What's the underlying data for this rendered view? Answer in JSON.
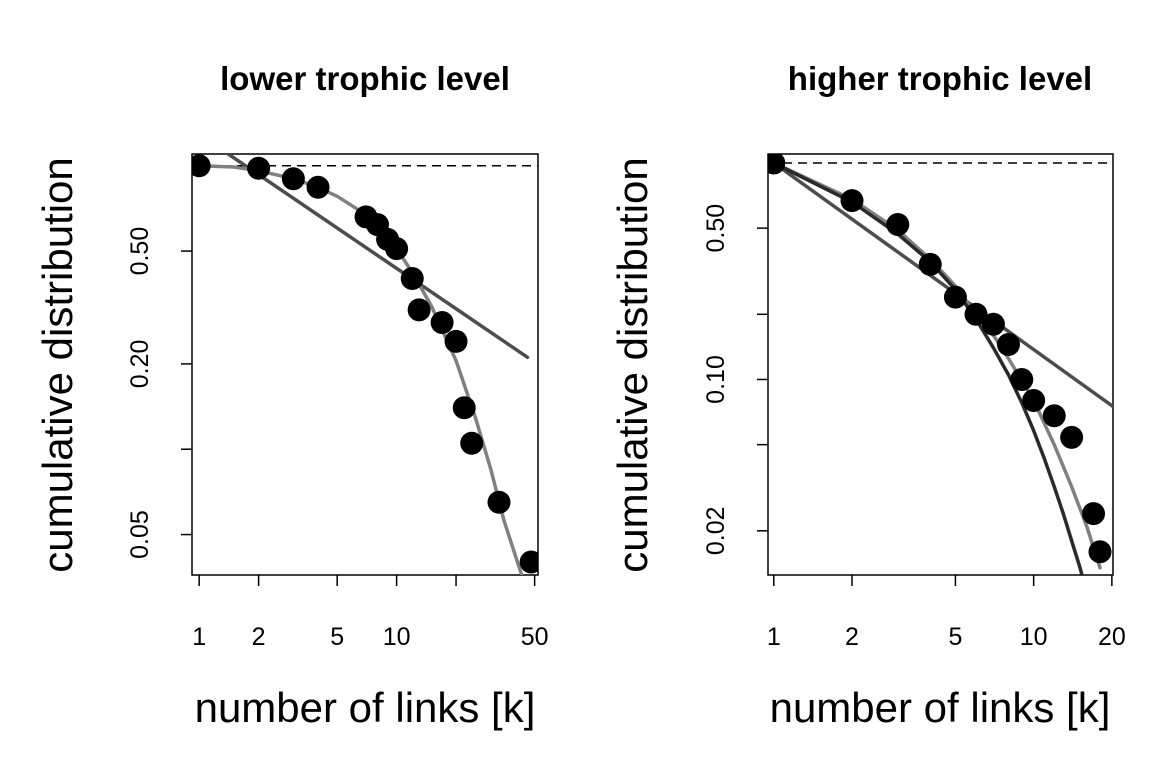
{
  "chart_data": [
    {
      "type": "scatter",
      "title": "lower trophic level",
      "xlabel": "number of links [k]",
      "ylabel": "cumulative distribution",
      "xscale": "log",
      "yscale": "log",
      "xlim": [
        0.92,
        52
      ],
      "ylim": [
        0.036,
        1.1
      ],
      "x_ticks": [
        1,
        2,
        5,
        10,
        20,
        50
      ],
      "x_tick_labels": [
        "1",
        "2",
        "5",
        "10",
        "",
        "50"
      ],
      "y_ticks": [
        0.05,
        0.1,
        0.2,
        0.5
      ],
      "y_tick_labels": [
        "0.05",
        "",
        "0.20",
        "0.50"
      ],
      "reference_line": {
        "y": 1.0,
        "style": "dashed"
      },
      "points": {
        "x": [
          1,
          2,
          3,
          4,
          7,
          8,
          9,
          10,
          12,
          13,
          17,
          20,
          22,
          24,
          33,
          48
        ],
        "y": [
          1.0,
          0.98,
          0.9,
          0.84,
          0.66,
          0.62,
          0.55,
          0.51,
          0.4,
          0.31,
          0.28,
          0.24,
          0.14,
          0.105,
          0.065,
          0.04
        ]
      },
      "fits": [
        {
          "style": "straight",
          "color": "#4d4d4d",
          "x": [
            1.3,
            46
          ],
          "y": [
            1.14,
            0.211
          ]
        },
        {
          "style": "curved",
          "color": "#808080",
          "x": [
            1,
            1.5,
            2,
            3,
            4,
            5,
            6,
            7,
            8,
            10,
            12,
            15,
            20,
            25,
            30,
            35,
            40,
            43
          ],
          "y": [
            1.0,
            0.99,
            0.96,
            0.9,
            0.84,
            0.78,
            0.72,
            0.67,
            0.61,
            0.51,
            0.42,
            0.32,
            0.205,
            0.13,
            0.085,
            0.056,
            0.042,
            0.036
          ]
        }
      ]
    },
    {
      "type": "scatter",
      "title": "higher trophic level",
      "xlabel": "number of links [k]",
      "ylabel": "cumulative distribution",
      "xscale": "log",
      "yscale": "log",
      "xlim": [
        0.95,
        20.2
      ],
      "ylim": [
        0.0125,
        1.1
      ],
      "x_ticks": [
        1,
        2,
        5,
        10,
        20
      ],
      "x_tick_labels": [
        "1",
        "2",
        "5",
        "10",
        "20"
      ],
      "y_ticks": [
        0.02,
        0.05,
        0.1,
        0.2,
        0.5
      ],
      "y_tick_labels": [
        "0.02",
        "",
        "0.10",
        "",
        "0.50"
      ],
      "reference_line": {
        "y": 1.0,
        "style": "dashed"
      },
      "points": {
        "x": [
          1,
          2,
          3,
          4,
          5,
          6,
          7,
          8,
          9,
          10,
          12,
          14,
          17,
          18
        ],
        "y": [
          1.0,
          0.67,
          0.52,
          0.34,
          0.24,
          0.2,
          0.18,
          0.145,
          0.1,
          0.08,
          0.068,
          0.054,
          0.024,
          0.016
        ]
      },
      "fits": [
        {
          "style": "straight",
          "color": "#4d4d4d",
          "x": [
            1,
            20.2
          ],
          "y": [
            1.0,
            0.075
          ]
        },
        {
          "style": "curved",
          "color": "#808080",
          "x": [
            1,
            2,
            3,
            4,
            5,
            6,
            7,
            8,
            10,
            12,
            14,
            16,
            18
          ],
          "y": [
            1.0,
            0.68,
            0.49,
            0.36,
            0.27,
            0.2,
            0.16,
            0.125,
            0.08,
            0.05,
            0.032,
            0.021,
            0.0135
          ]
        },
        {
          "style": "curved",
          "color": "#2a2a2a",
          "x": [
            1,
            2,
            3,
            4,
            5,
            6,
            7,
            8,
            9,
            10,
            11,
            12,
            13,
            14,
            15,
            15.5
          ],
          "y": [
            1.0,
            0.66,
            0.47,
            0.35,
            0.26,
            0.19,
            0.14,
            0.105,
            0.078,
            0.058,
            0.043,
            0.032,
            0.024,
            0.018,
            0.0138,
            0.012
          ]
        }
      ]
    }
  ]
}
